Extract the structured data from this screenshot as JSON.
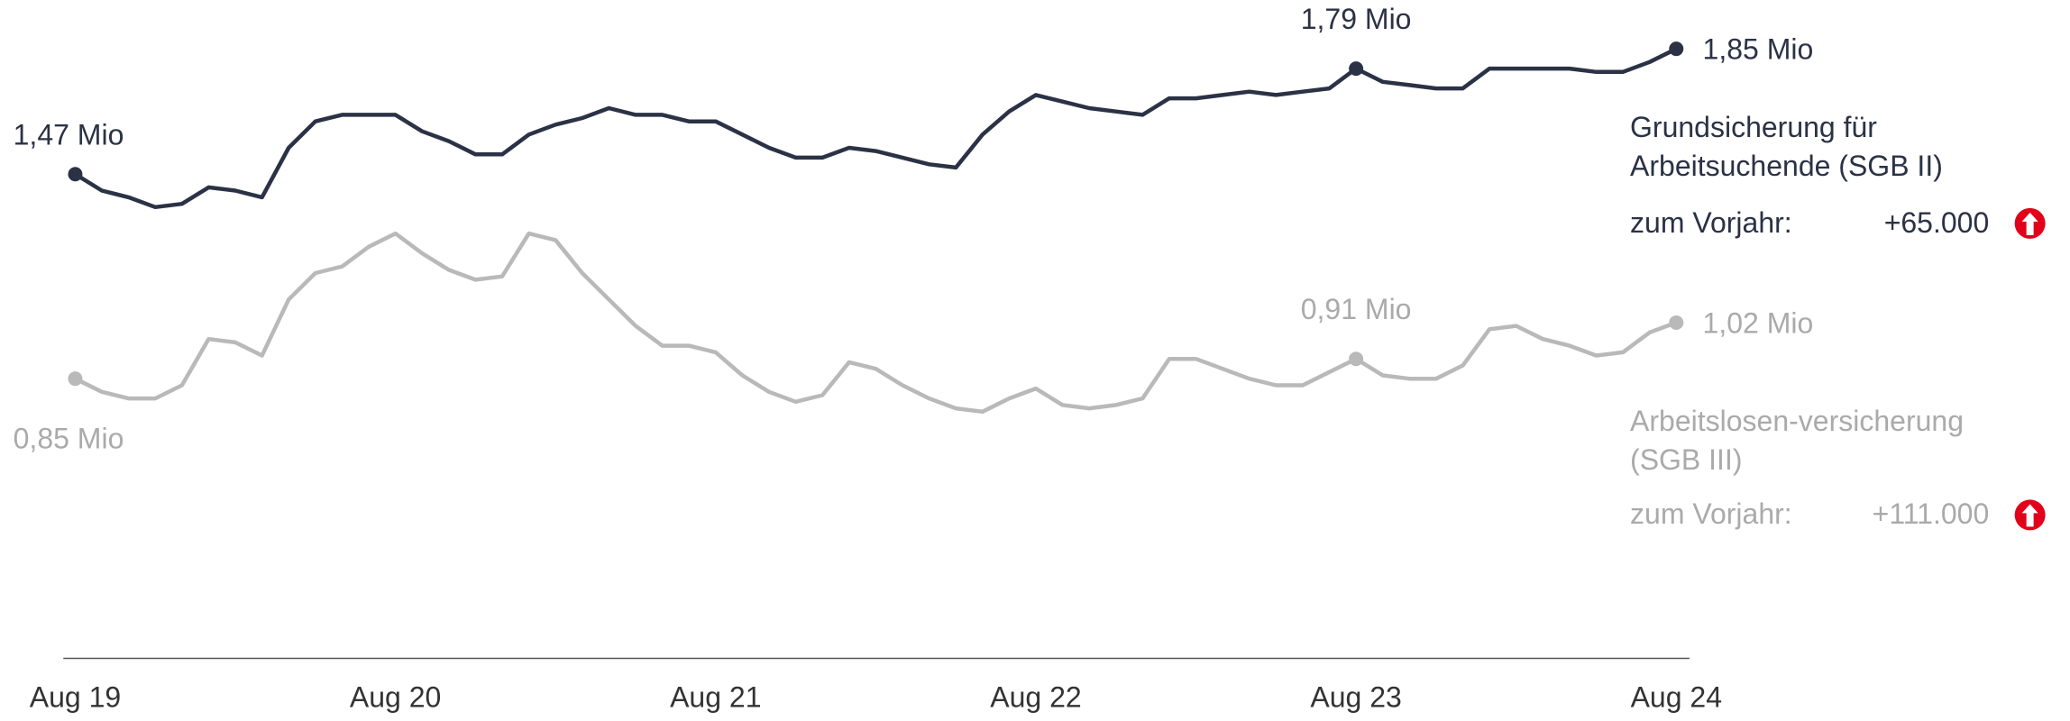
{
  "chart_data": {
    "type": "line",
    "categories": [
      "Aug 19",
      null,
      null,
      null,
      null,
      null,
      null,
      null,
      null,
      null,
      null,
      null,
      "Aug 20",
      null,
      null,
      null,
      null,
      null,
      null,
      null,
      null,
      null,
      null,
      null,
      "Aug 21",
      null,
      null,
      null,
      null,
      null,
      null,
      null,
      null,
      null,
      null,
      null,
      "Aug 22",
      null,
      null,
      null,
      null,
      null,
      null,
      null,
      null,
      null,
      null,
      null,
      "Aug 23",
      null,
      null,
      null,
      null,
      null,
      null,
      null,
      null,
      null,
      null,
      null,
      "Aug 24"
    ],
    "series": [
      {
        "name": "Grundsicherung für Arbeitsuchende (SGB II)",
        "color": "#2b3245",
        "values": [
          1.47,
          1.42,
          1.4,
          1.37,
          1.38,
          1.43,
          1.42,
          1.4,
          1.55,
          1.63,
          1.65,
          1.65,
          1.65,
          1.6,
          1.57,
          1.53,
          1.53,
          1.59,
          1.62,
          1.64,
          1.67,
          1.65,
          1.65,
          1.63,
          1.63,
          1.59,
          1.55,
          1.52,
          1.52,
          1.55,
          1.54,
          1.52,
          1.5,
          1.49,
          1.59,
          1.66,
          1.71,
          1.69,
          1.67,
          1.66,
          1.65,
          1.7,
          1.7,
          1.71,
          1.72,
          1.71,
          1.72,
          1.73,
          1.79,
          1.75,
          1.74,
          1.73,
          1.73,
          1.79,
          1.79,
          1.79,
          1.79,
          1.78,
          1.78,
          1.81,
          1.85
        ],
        "value_labels": [
          "1,47 Mio",
          null,
          null,
          null,
          null,
          null,
          null,
          null,
          null,
          null,
          null,
          null,
          null,
          null,
          null,
          null,
          null,
          null,
          null,
          null,
          null,
          null,
          null,
          null,
          null,
          null,
          null,
          null,
          null,
          null,
          null,
          null,
          null,
          null,
          null,
          null,
          null,
          null,
          null,
          null,
          null,
          null,
          null,
          null,
          null,
          null,
          null,
          null,
          "1,79 Mio",
          null,
          null,
          null,
          null,
          null,
          null,
          null,
          null,
          null,
          null,
          null,
          "1,85 Mio"
        ],
        "change": {
          "label": "zum Vorjahr:",
          "value": 65000,
          "value_label": "+65.000"
        }
      },
      {
        "name": "Arbeitslosen-versicherung (SGB III)",
        "color": "#b9b9b9",
        "values": [
          0.85,
          0.81,
          0.79,
          0.79,
          0.83,
          0.97,
          0.96,
          0.92,
          1.09,
          1.17,
          1.19,
          1.25,
          1.29,
          1.23,
          1.18,
          1.15,
          1.16,
          1.29,
          1.27,
          1.17,
          1.09,
          1.01,
          0.95,
          0.95,
          0.93,
          0.86,
          0.81,
          0.78,
          0.8,
          0.9,
          0.88,
          0.83,
          0.79,
          0.76,
          0.75,
          0.79,
          0.82,
          0.77,
          0.76,
          0.77,
          0.79,
          0.91,
          0.91,
          0.88,
          0.85,
          0.83,
          0.83,
          0.87,
          0.91,
          0.86,
          0.85,
          0.85,
          0.89,
          1.0,
          1.01,
          0.97,
          0.95,
          0.92,
          0.93,
          0.99,
          1.02
        ],
        "value_labels": [
          "0,85 Mio",
          null,
          null,
          null,
          null,
          null,
          null,
          null,
          null,
          null,
          null,
          null,
          null,
          null,
          null,
          null,
          null,
          null,
          null,
          null,
          null,
          null,
          null,
          null,
          null,
          null,
          null,
          null,
          null,
          null,
          null,
          null,
          null,
          null,
          null,
          null,
          null,
          null,
          null,
          null,
          null,
          null,
          null,
          null,
          null,
          null,
          null,
          null,
          "0,91 Mio",
          null,
          null,
          null,
          null,
          null,
          null,
          null,
          null,
          null,
          null,
          null,
          "1,02 Mio"
        ],
        "change": {
          "label": "zum Vorjahr:",
          "value": 111000,
          "value_label": "+111.000"
        }
      }
    ]
  }
}
